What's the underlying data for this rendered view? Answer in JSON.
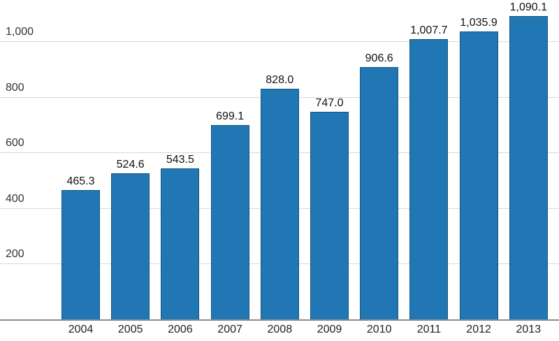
{
  "chart_data": {
    "type": "bar",
    "title": "",
    "xlabel": "",
    "ylabel": "",
    "categories": [
      "2004",
      "2005",
      "2006",
      "2007",
      "2008",
      "2009",
      "2010",
      "2011",
      "2012",
      "2013"
    ],
    "values": [
      465.3,
      524.6,
      543.5,
      699.1,
      828.0,
      747.0,
      906.6,
      1007.7,
      1035.9,
      1090.1
    ],
    "value_labels": [
      "465.3",
      "524.6",
      "543.5",
      "699.1",
      "828.0",
      "747.0",
      "906.6",
      "1,007.7",
      "1,035.9",
      "1,090.1"
    ],
    "y_ticks": [
      {
        "value": 200,
        "label": "200"
      },
      {
        "value": 400,
        "label": "400"
      },
      {
        "value": 600,
        "label": "600"
      },
      {
        "value": 800,
        "label": "800"
      },
      {
        "value": 1000,
        "label": "1,000"
      }
    ],
    "ylim": [
      0,
      1146
    ],
    "grid": true,
    "legend": "none",
    "colors": {
      "bar_fill": "#2077b4",
      "bar_border": "#14557e",
      "value_label": "#111111",
      "y_tick_label": "#333333",
      "x_tick_label": "#222222",
      "gridline": "#d9d9d9",
      "axis_line": "#8c8c8c",
      "background": "#ffffff"
    }
  }
}
